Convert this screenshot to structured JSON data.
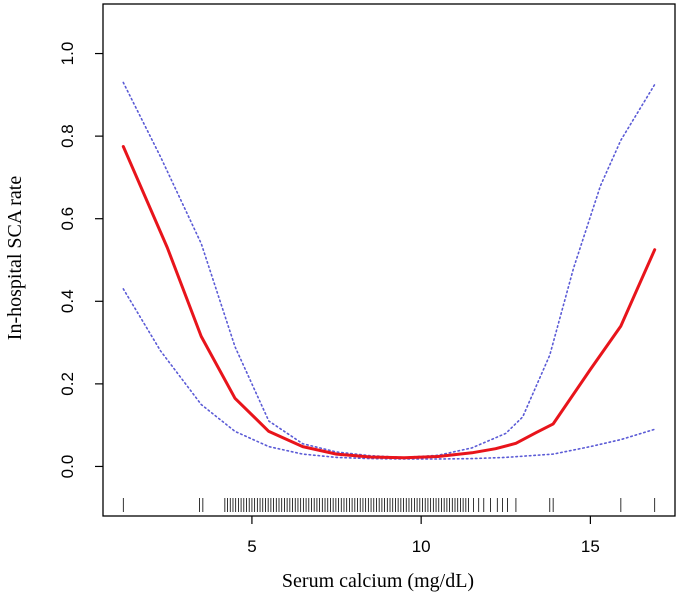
{
  "chart_data": {
    "type": "line",
    "title": "",
    "xlabel": "Serum calcium (mg/dL)",
    "ylabel": "In-hospital  SCA rate",
    "xlim": [
      0.6,
      17.5
    ],
    "ylim": [
      -0.12,
      1.12
    ],
    "x_ticks": [
      5,
      10,
      15
    ],
    "x_tick_labels": [
      "5",
      "10",
      "15"
    ],
    "y_ticks": [
      0.0,
      0.2,
      0.4,
      0.6,
      0.8,
      1.0
    ],
    "y_tick_labels": [
      "0.0",
      "0.2",
      "0.4",
      "0.6",
      "0.8",
      "1.0"
    ],
    "grid": false,
    "legend": "none",
    "series": [
      {
        "role": "estimate",
        "color": "#e8141b",
        "style": "solid",
        "x": [
          1.2,
          2.5,
          3.5,
          4.5,
          5.5,
          6.5,
          7.5,
          8.5,
          9.5,
          10.5,
          11.5,
          12.2,
          12.8,
          13.4,
          13.9,
          15.0,
          15.9,
          16.9
        ],
        "y": [
          0.775,
          0.53,
          0.315,
          0.165,
          0.085,
          0.048,
          0.03,
          0.023,
          0.021,
          0.024,
          0.033,
          0.043,
          0.056,
          0.082,
          0.103,
          0.235,
          0.34,
          0.525
        ]
      },
      {
        "role": "upper-ci",
        "color": "#5b5bd6",
        "style": "dotted",
        "x": [
          1.2,
          2.3,
          3.5,
          4.5,
          5.5,
          6.5,
          7.5,
          8.5,
          9.5,
          10.5,
          11.5,
          12.5,
          13.0,
          13.8,
          14.5,
          15.3,
          15.9,
          16.9
        ],
        "y": [
          0.93,
          0.75,
          0.54,
          0.29,
          0.11,
          0.055,
          0.035,
          0.026,
          0.022,
          0.027,
          0.045,
          0.08,
          0.12,
          0.27,
          0.48,
          0.68,
          0.79,
          0.925
        ]
      },
      {
        "role": "lower-ci",
        "color": "#5b5bd6",
        "style": "dotted",
        "x": [
          1.2,
          2.3,
          3.5,
          4.5,
          5.5,
          6.5,
          7.5,
          8.5,
          9.5,
          10.5,
          11.5,
          12.5,
          13.9,
          15.0,
          15.9,
          16.9
        ],
        "y": [
          0.43,
          0.28,
          0.15,
          0.085,
          0.048,
          0.03,
          0.022,
          0.019,
          0.018,
          0.018,
          0.019,
          0.022,
          0.03,
          0.048,
          0.065,
          0.09
        ]
      }
    ],
    "rug_x": [
      1.2,
      3.45,
      3.55,
      4.2,
      4.28,
      4.36,
      4.44,
      4.52,
      4.6,
      4.68,
      4.76,
      4.84,
      4.92,
      5.0,
      5.08,
      5.16,
      5.24,
      5.32,
      5.4,
      5.48,
      5.56,
      5.64,
      5.72,
      5.8,
      5.88,
      5.96,
      6.04,
      6.12,
      6.2,
      6.28,
      6.36,
      6.44,
      6.52,
      6.6,
      6.68,
      6.76,
      6.84,
      6.92,
      7.0,
      7.08,
      7.16,
      7.24,
      7.32,
      7.4,
      7.48,
      7.56,
      7.64,
      7.72,
      7.8,
      7.88,
      7.96,
      8.04,
      8.12,
      8.2,
      8.28,
      8.36,
      8.44,
      8.52,
      8.6,
      8.68,
      8.76,
      8.84,
      8.92,
      9.0,
      9.08,
      9.16,
      9.24,
      9.32,
      9.4,
      9.48,
      9.56,
      9.64,
      9.72,
      9.8,
      9.88,
      9.96,
      10.04,
      10.12,
      10.2,
      10.28,
      10.36,
      10.44,
      10.52,
      10.6,
      10.68,
      10.76,
      10.84,
      10.92,
      11.0,
      11.08,
      11.16,
      11.24,
      11.32,
      11.4,
      11.55,
      11.7,
      11.85,
      12.05,
      12.25,
      12.4,
      12.55,
      12.8,
      13.8,
      13.9,
      15.9,
      16.9
    ]
  }
}
